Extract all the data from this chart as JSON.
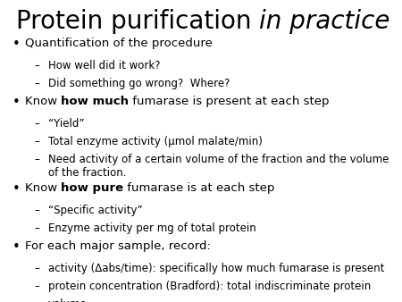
{
  "title_normal": "Protein purification ",
  "title_italic": "in practice",
  "background_color": "#ffffff",
  "text_color": "#000000",
  "title_fontsize": 20,
  "body_fontsize": 9.5,
  "sub_fontsize": 8.5,
  "bullet_items": [
    {
      "level": 0,
      "text_parts": [
        [
          "Quantification of the procedure",
          "normal"
        ]
      ]
    },
    {
      "level": 1,
      "text_parts": [
        [
          "How well did it work?",
          "normal"
        ]
      ]
    },
    {
      "level": 1,
      "text_parts": [
        [
          "Did something go wrong?  Where?",
          "normal"
        ]
      ]
    },
    {
      "level": 0,
      "text_parts": [
        [
          "Know ",
          "normal"
        ],
        [
          "how much",
          "bold"
        ],
        [
          " fumarase is present at each step",
          "normal"
        ]
      ]
    },
    {
      "level": 1,
      "text_parts": [
        [
          "“Yield”",
          "normal"
        ]
      ]
    },
    {
      "level": 1,
      "text_parts": [
        [
          "Total enzyme activity (μmol malate/min)",
          "normal"
        ]
      ]
    },
    {
      "level": 1,
      "text_parts": [
        [
          "Need activity of a certain volume of the fraction and the volume\nof the fraction.",
          "normal"
        ]
      ],
      "wrapped": true
    },
    {
      "level": 0,
      "text_parts": [
        [
          "Know ",
          "normal"
        ],
        [
          "how pure",
          "bold"
        ],
        [
          " fumarase is at each step",
          "normal"
        ]
      ]
    },
    {
      "level": 1,
      "text_parts": [
        [
          "“Specific activity”",
          "normal"
        ]
      ]
    },
    {
      "level": 1,
      "text_parts": [
        [
          "Enzyme activity per mg of total protein",
          "normal"
        ]
      ]
    },
    {
      "level": 0,
      "text_parts": [
        [
          "For each major sample, record:",
          "normal"
        ]
      ]
    },
    {
      "level": 1,
      "text_parts": [
        [
          "activity (Δabs/time): specifically how much fumarase is present",
          "normal"
        ]
      ]
    },
    {
      "level": 1,
      "text_parts": [
        [
          "protein concentration (Bradford): total indiscriminate protein",
          "normal"
        ]
      ]
    },
    {
      "level": 1,
      "text_parts": [
        [
          "volume",
          "normal"
        ]
      ]
    }
  ]
}
